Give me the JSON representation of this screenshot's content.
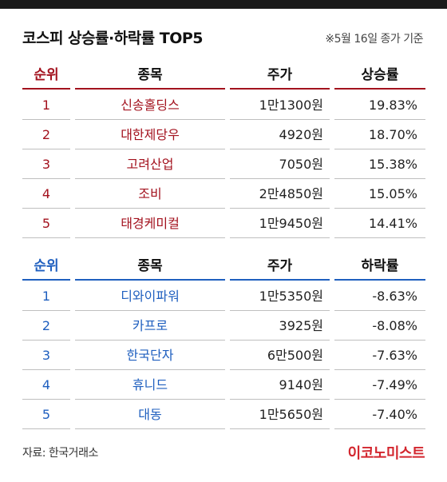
{
  "title": "코스피 상승률·하락률 TOP5",
  "date_note": "※5월 16일 종가 기준",
  "gainers": {
    "headers": {
      "rank": "순위",
      "name": "종목",
      "price": "주가",
      "rate": "상승률"
    },
    "rows": [
      {
        "rank": "1",
        "name": "신송홀딩스",
        "price": "1만1300원",
        "rate": "19.83%"
      },
      {
        "rank": "2",
        "name": "대한제당우",
        "price": "4920원",
        "rate": "18.70%"
      },
      {
        "rank": "3",
        "name": "고려산업",
        "price": "7050원",
        "rate": "15.38%"
      },
      {
        "rank": "4",
        "name": "조비",
        "price": "2만4850원",
        "rate": "15.05%"
      },
      {
        "rank": "5",
        "name": "태경케미컬",
        "price": "1만9450원",
        "rate": "14.41%"
      }
    ]
  },
  "losers": {
    "headers": {
      "rank": "순위",
      "name": "종목",
      "price": "주가",
      "rate": "하락률"
    },
    "rows": [
      {
        "rank": "1",
        "name": "디와이파워",
        "price": "1만5350원",
        "rate": "-8.63%"
      },
      {
        "rank": "2",
        "name": "카프로",
        "price": "3925원",
        "rate": "-8.08%"
      },
      {
        "rank": "3",
        "name": "한국단자",
        "price": "6만500원",
        "rate": "-7.63%"
      },
      {
        "rank": "4",
        "name": "휴니드",
        "price": "9140원",
        "rate": "-7.49%"
      },
      {
        "rank": "5",
        "name": "대동",
        "price": "1만5650원",
        "rate": "-7.40%"
      }
    ]
  },
  "source": "자료: 한국거래소",
  "logo": "이코노미스트",
  "colors": {
    "gain": "#a3121e",
    "loss": "#1f5fbf",
    "logo": "#d3262e",
    "top_bar": "#1a1a1a"
  }
}
